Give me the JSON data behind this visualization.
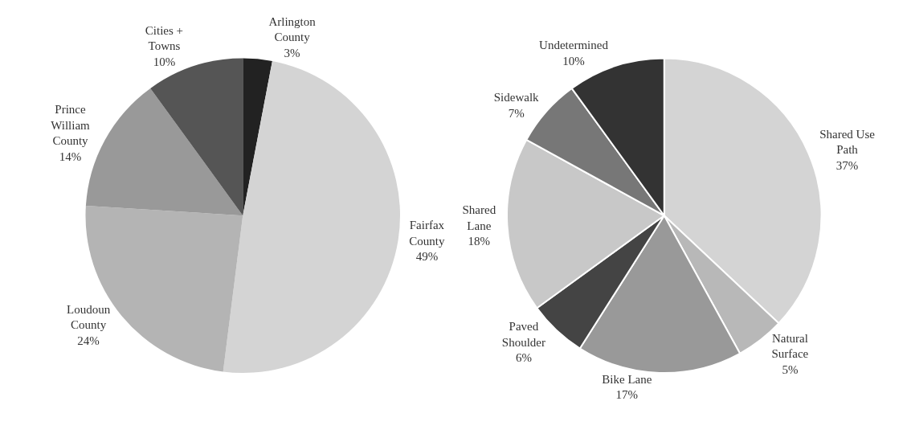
{
  "chart_data": [
    {
      "type": "pie",
      "categories": [
        "Arlington County",
        "Fairfax County",
        "Loudoun County",
        "Prince William County",
        "Cities + Towns"
      ],
      "values": [
        3,
        49,
        24,
        14,
        10
      ],
      "value_labels": [
        "3%",
        "49%",
        "24%",
        "14%",
        "10%"
      ],
      "colors": [
        "#222222",
        "#d4d4d4",
        "#b4b4b4",
        "#999999",
        "#555555"
      ],
      "legend": false
    },
    {
      "type": "pie",
      "categories": [
        "Shared Use Path",
        "Natural Surface",
        "Bike Lane",
        "Paved Shoulder",
        "Shared Lane",
        "Sidewalk",
        "Undetermined"
      ],
      "values": [
        37,
        5,
        17,
        6,
        18,
        7,
        10
      ],
      "value_labels": [
        "37%",
        "5%",
        "17%",
        "6%",
        "18%",
        "7%",
        "10%"
      ],
      "colors": [
        "#d4d4d4",
        "#b8b8b8",
        "#999999",
        "#444444",
        "#c8c8c8",
        "#777777",
        "#333333"
      ],
      "legend": false
    }
  ]
}
